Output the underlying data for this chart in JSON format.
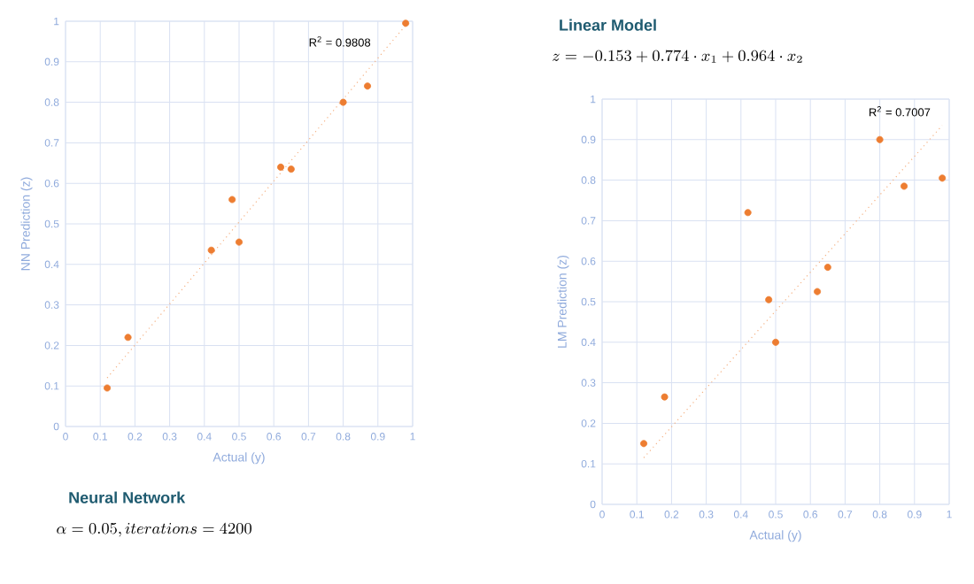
{
  "chart_data": [
    {
      "type": "scatter",
      "marker": "circle",
      "title": "Neural Network",
      "subtitle": "\\alpha = 0.05, iterations = 4200",
      "xlabel": "Actual (y)",
      "ylabel": "NN Prediction (z)",
      "annotations": [
        "R$^{2}$ = 0.9808"
      ],
      "xlim": [
        0,
        1
      ],
      "ylim": [
        0,
        1
      ],
      "xticks": [
        0,
        0.1,
        0.2,
        0.3,
        0.4,
        0.5,
        0.6,
        0.7,
        0.8,
        0.9,
        1
      ],
      "yticks": [
        0,
        0.1,
        0.2,
        0.3,
        0.4,
        0.5,
        0.6,
        0.7,
        0.8,
        0.9,
        1
      ],
      "grid": true,
      "series": [
        {
          "color": "#ed7d31",
          "x": [
            0.12,
            0.18,
            0.42,
            0.48,
            0.5,
            0.62,
            0.65,
            0.8,
            0.87,
            0.98
          ],
          "values": [
            0.095,
            0.22,
            0.435,
            0.56,
            0.455,
            0.64,
            0.635,
            0.8,
            0.84,
            0.995
          ]
        },
        {
          "type": "line",
          "marker": "none",
          "color": "#f4b183",
          "line_style": "dotted",
          "x": [
            0.12,
            0.98
          ],
          "values": [
            0.12,
            0.99
          ]
        }
      ]
    },
    {
      "type": "scatter",
      "marker": "circle",
      "title": "Linear Model",
      "subtitle": "z = -0.153 + 0.774 \\cdot x_1 + 0.964 \\cdot x_2",
      "xlabel": "Actual (y)",
      "ylabel": "LM Prediction (z)",
      "annotations": [
        "R$^{2}$ = 0.7007"
      ],
      "xlim": [
        0,
        1
      ],
      "ylim": [
        0,
        1
      ],
      "xticks": [
        0,
        0.1,
        0.2,
        0.3,
        0.4,
        0.5,
        0.6,
        0.7,
        0.8,
        0.9,
        1
      ],
      "yticks": [
        0,
        0.1,
        0.2,
        0.3,
        0.4,
        0.5,
        0.6,
        0.7,
        0.8,
        0.9,
        1
      ],
      "grid": true,
      "series": [
        {
          "color": "#ed7d31",
          "x": [
            0.12,
            0.18,
            0.42,
            0.48,
            0.5,
            0.62,
            0.65,
            0.8,
            0.87,
            0.98
          ],
          "values": [
            0.15,
            0.265,
            0.72,
            0.505,
            0.4,
            0.525,
            0.585,
            0.9,
            0.785,
            0.805
          ]
        },
        {
          "type": "line",
          "marker": "none",
          "color": "#f4b183",
          "line_style": "dotted",
          "x": [
            0.12,
            0.98
          ],
          "values": [
            0.115,
            0.935
          ]
        }
      ]
    }
  ]
}
